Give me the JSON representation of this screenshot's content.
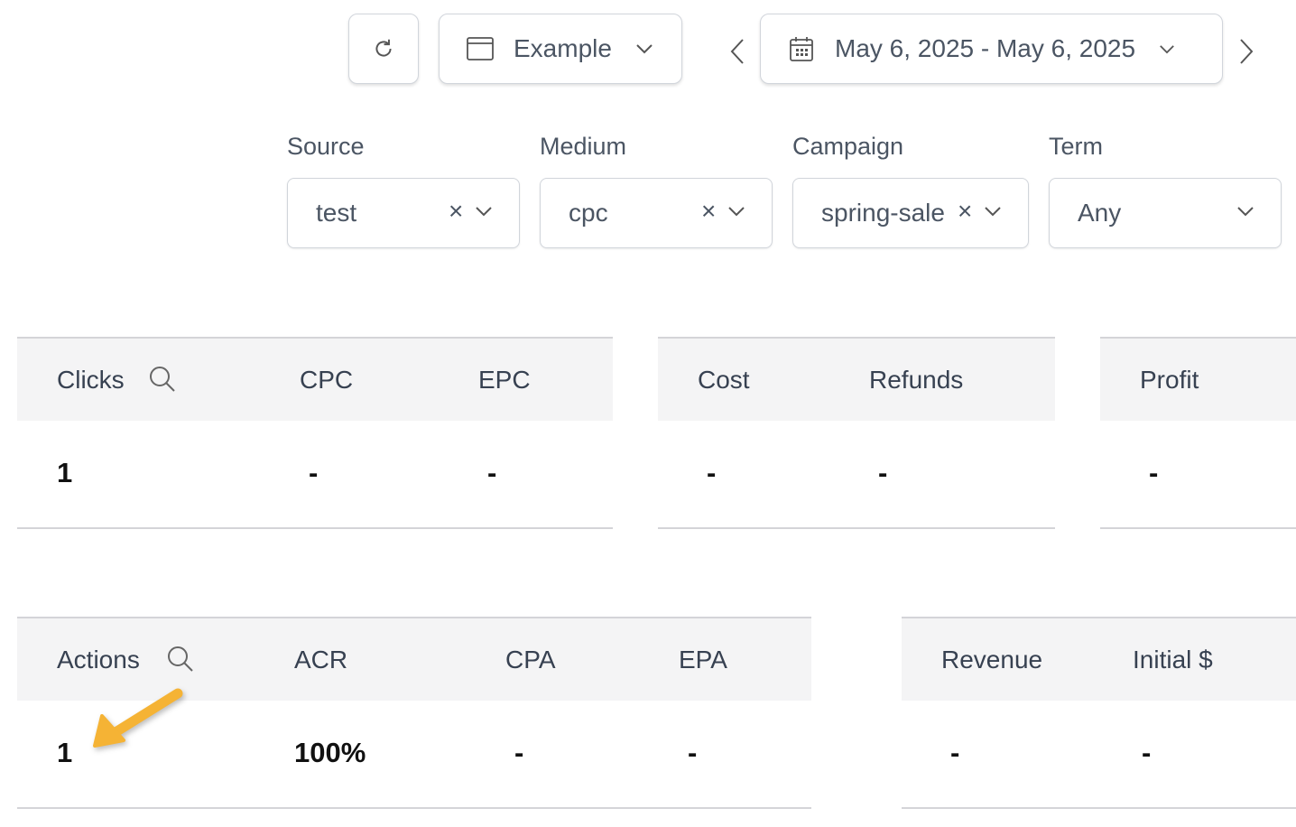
{
  "toolbar": {
    "refresh_icon": "refresh-icon",
    "view_label": "Example",
    "date_range": "May 6, 2025 - May 6, 2025"
  },
  "filters": [
    {
      "label": "Source",
      "value": "test",
      "clearable": true
    },
    {
      "label": "Medium",
      "value": "cpc",
      "clearable": true
    },
    {
      "label": "Campaign",
      "value": "spring-sale",
      "clearable": true
    },
    {
      "label": "Term",
      "value": "Any",
      "clearable": false
    }
  ],
  "clear_glyph": "×",
  "table1": {
    "groups": [
      {
        "headers": [
          "Clicks",
          "CPC",
          "EPC"
        ],
        "values": [
          "1",
          "-",
          "-"
        ]
      },
      {
        "headers": [
          "Cost",
          "Refunds"
        ],
        "values": [
          "-",
          "-"
        ]
      },
      {
        "headers": [
          "Profit"
        ],
        "values": [
          "-"
        ]
      }
    ]
  },
  "table2": {
    "groups": [
      {
        "headers": [
          "Actions",
          "ACR",
          "CPA",
          "EPA"
        ],
        "values": [
          "1",
          "100%",
          "-",
          "-"
        ]
      },
      {
        "headers": [
          "Revenue",
          "Initial $"
        ],
        "values": [
          "-",
          "-"
        ]
      }
    ]
  },
  "annotation": {
    "arrow_color": "#f5b335"
  }
}
